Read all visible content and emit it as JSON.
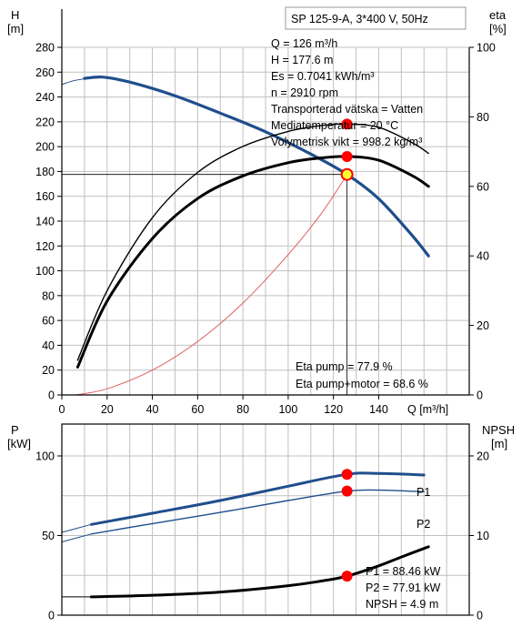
{
  "colors": {
    "head_curve": "#1f4e8c",
    "eta_curves": "#000000",
    "power_curves": "#1f4e8c",
    "npsh_curve": "#000000",
    "system_curve": "#e06060",
    "duty_point": "#ff0000",
    "grid": "#c0c0c0"
  },
  "chart_data": [
    {
      "type": "line",
      "title": "SP 125-9-A, 3*400 V, 50Hz",
      "ylabel_left": "H",
      "ylabel_left_unit": "[m]",
      "ylabel_right": "eta",
      "ylabel_right_unit": "[%]",
      "xlabel": "Q [m³/h]",
      "xlim": [
        0,
        180
      ],
      "xticks": [
        0,
        20,
        40,
        60,
        80,
        100,
        120,
        140
      ],
      "ylim_left": [
        0,
        280
      ],
      "yticks_left": [
        0,
        20,
        40,
        60,
        80,
        100,
        120,
        140,
        160,
        180,
        200,
        220,
        240,
        260,
        280
      ],
      "ylim_right": [
        0,
        100
      ],
      "yticks_right": [
        0,
        20,
        40,
        60,
        80,
        100
      ],
      "grid": true,
      "info_lines": [
        "Q = 126 m³/h",
        "H = 177.6 m",
        "Es = 0.7041 kWh/m³",
        "n = 2910 rpm",
        "Transporterad vätska = Vatten",
        "Mediatemperatur = 20 °C",
        "Volymetrisk vikt = 998.2 kg/m³"
      ],
      "annotations": [
        "Eta pump = 77.9 %",
        "Eta pump+motor = 68.6 %"
      ],
      "duty_point": {
        "q": 126,
        "h": 177.6,
        "eta_pump": 77.9,
        "eta_pump_motor": 68.6
      },
      "series": [
        {
          "id": "head",
          "axis": "left",
          "x": [
            0,
            5,
            10,
            18,
            30,
            50,
            70,
            90,
            110,
            126,
            140,
            155,
            162
          ],
          "y": [
            250,
            253,
            255,
            256,
            252,
            241,
            227,
            212,
            194,
            177.6,
            158,
            128,
            112
          ]
        },
        {
          "id": "system",
          "axis": "left",
          "x": [
            6,
            20,
            40,
            60,
            80,
            100,
            115,
            126
          ],
          "y": [
            0,
            5,
            20,
            43,
            74,
            113,
            147,
            177.6
          ]
        },
        {
          "id": "eta_pump",
          "axis": "right",
          "x": [
            7,
            20,
            40,
            60,
            80,
            100,
            115,
            126,
            140,
            155,
            162
          ],
          "y": [
            10,
            30,
            51,
            64,
            71.5,
            75.8,
            77.5,
            77.9,
            77,
            72.5,
            69.5
          ]
        },
        {
          "id": "eta_pump_motor",
          "axis": "right",
          "x": [
            7,
            20,
            40,
            60,
            80,
            100,
            115,
            126,
            140,
            155,
            162
          ],
          "y": [
            8,
            27,
            45,
            56.5,
            63,
            66.8,
            68.2,
            68.6,
            67.5,
            63,
            60
          ]
        }
      ]
    },
    {
      "type": "line",
      "ylabel_left": "P",
      "ylabel_left_unit": "[kW]",
      "ylabel_right": "NPSH",
      "ylabel_right_unit": "[m]",
      "xlim": [
        0,
        180
      ],
      "ylim_left": [
        0,
        120
      ],
      "yticks_left": [
        0,
        50,
        100
      ],
      "ylim_right": [
        0,
        24
      ],
      "yticks_right": [
        0,
        10,
        20
      ],
      "grid": true,
      "legend": [
        "P1",
        "P2"
      ],
      "annotations": [
        "P1 = 88.46 kW",
        "P2 = 77.91 kW",
        "NPSH = 4.9 m"
      ],
      "duty_point": {
        "q": 126,
        "p1": 88.46,
        "p2": 77.91,
        "npsh": 4.9
      },
      "series": [
        {
          "id": "p1",
          "axis": "left",
          "x": [
            0,
            13,
            40,
            70,
            100,
            126,
            140,
            160
          ],
          "y": [
            52,
            57,
            64,
            72,
            81,
            88.46,
            89,
            88
          ]
        },
        {
          "id": "p2",
          "axis": "left",
          "x": [
            0,
            13,
            40,
            70,
            100,
            126,
            140,
            160
          ],
          "y": [
            46,
            51,
            57.5,
            64.5,
            72,
            77.91,
            78.5,
            77.5
          ]
        },
        {
          "id": "npsh",
          "axis": "right",
          "x": [
            0,
            13,
            40,
            70,
            100,
            115,
            126,
            140,
            150,
            162
          ],
          "y": [
            2.3,
            2.3,
            2.5,
            2.9,
            3.7,
            4.3,
            4.9,
            6.2,
            7.3,
            8.6
          ]
        }
      ]
    }
  ]
}
